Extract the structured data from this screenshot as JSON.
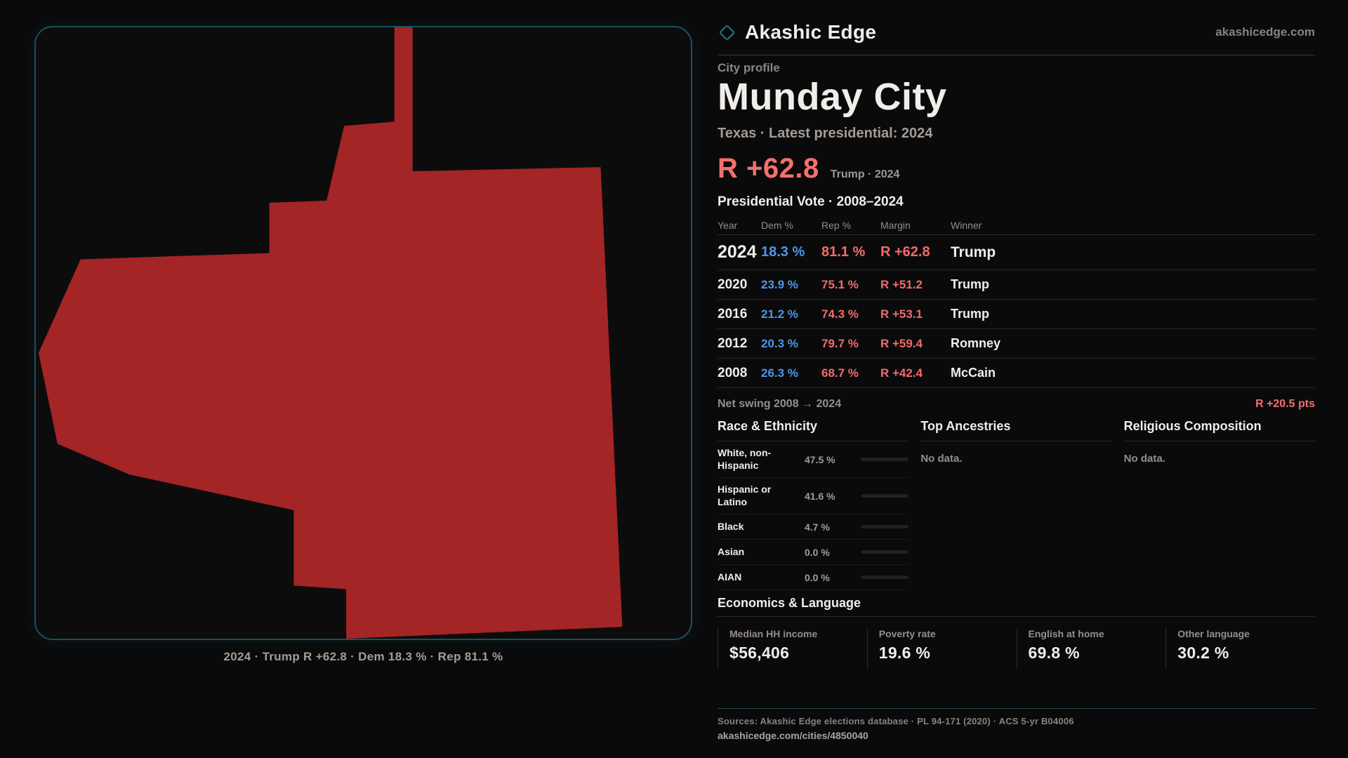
{
  "brand": {
    "name": "Akashic Edge",
    "domain": "akashicedge.com",
    "logo_icon": "diamond-icon",
    "accent_teal": "#2e7488"
  },
  "profile": {
    "kicker": "City profile",
    "city_name": "Munday City",
    "subtitle": "Texas · Latest presidential: 2024",
    "headline_margin": "R +62.8",
    "headline_note": "Trump · 2024",
    "accent_red": "#f3716c",
    "dem_blue": "#4e96e8"
  },
  "map": {
    "caption": "2024 · Trump R +62.8 · Dem 18.3 % · Rep 81.1 %",
    "fill_color": "#a42526",
    "panel_border_color": "#1b505c"
  },
  "election_table": {
    "title": "Presidential Vote · 2008–2024",
    "columns": [
      "Year",
      "Dem %",
      "Rep %",
      "Margin",
      "Winner"
    ],
    "rows": [
      {
        "year": "2024",
        "dem": "18.3 %",
        "rep": "81.1 %",
        "margin": "R +62.8",
        "winner": "Trump"
      },
      {
        "year": "2020",
        "dem": "23.9 %",
        "rep": "75.1 %",
        "margin": "R +51.2",
        "winner": "Trump"
      },
      {
        "year": "2016",
        "dem": "21.2 %",
        "rep": "74.3 %",
        "margin": "R +53.1",
        "winner": "Trump"
      },
      {
        "year": "2012",
        "dem": "20.3 %",
        "rep": "79.7 %",
        "margin": "R +59.4",
        "winner": "Romney"
      },
      {
        "year": "2008",
        "dem": "26.3 %",
        "rep": "68.7 %",
        "margin": "R +42.4",
        "winner": "McCain"
      }
    ],
    "net_swing_label": "Net swing 2008 → 2024",
    "net_swing_value": "R +20.5 pts"
  },
  "demographics": {
    "race_title": "Race & Ethnicity",
    "race_rows": [
      {
        "label": "White, non-Hispanic",
        "value": "47.5 %",
        "pct": 47.5,
        "color": "#9fb2cc"
      },
      {
        "label": "Hispanic or Latino",
        "value": "41.6 %",
        "pct": 41.6,
        "color": "#e99d15"
      },
      {
        "label": "Black",
        "value": "4.7 %",
        "pct": 4.7,
        "color": "#8f7ff0"
      },
      {
        "label": "Asian",
        "value": "0.0 %",
        "pct": 0,
        "color": "#9fb2cc"
      },
      {
        "label": "AIAN",
        "value": "0.0 %",
        "pct": 0,
        "color": "#9fb2cc"
      }
    ],
    "ancestries_title": "Top Ancestries",
    "ancestries_empty": "No data.",
    "religion_title": "Religious Composition",
    "religion_empty": "No data."
  },
  "economics": {
    "title": "Economics & Language",
    "stats": [
      {
        "label": "Median HH income",
        "value": "$56,406"
      },
      {
        "label": "Poverty rate",
        "value": "19.6 %"
      },
      {
        "label": "English at home",
        "value": "69.8 %"
      },
      {
        "label": "Other language",
        "value": "30.2 %"
      }
    ]
  },
  "footer": {
    "sources": "Sources: Akashic Edge elections database · PL 94-171 (2020) · ACS 5-yr B04006",
    "permalink": "akashicedge.com/cities/4850040"
  }
}
